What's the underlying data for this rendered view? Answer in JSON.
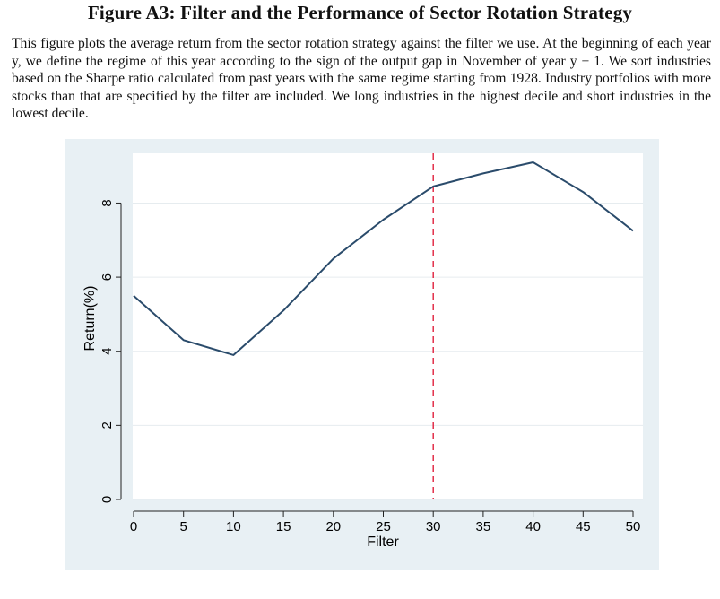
{
  "figure": {
    "title": "Figure A3: Filter and the Performance of Sector Rotation Strategy",
    "caption": "This figure plots the average return from the sector rotation strategy against the filter we use. At the beginning of each year y, we define the regime of this year according to the sign of the output gap in November of year y − 1. We sort industries based on the Sharpe ratio calculated from past years with the same regime starting from 1928. Industry portfolios with more stocks than that are specified by the filter are included. We long industries in the highest decile and short industries in the lowest decile."
  },
  "colors": {
    "outer_bg": "#e8f0f4",
    "plot_bg": "#ffffff",
    "line": "#2a4b6b",
    "ref_line": "#e0203c",
    "grid": "#e6ecef"
  },
  "chart_data": {
    "type": "line",
    "xlabel": "Filter",
    "ylabel": "Return(%)",
    "x": [
      0,
      5,
      10,
      15,
      20,
      25,
      30,
      35,
      40,
      45,
      50
    ],
    "y": [
      5.5,
      4.3,
      3.9,
      5.1,
      6.5,
      7.55,
      8.45,
      8.8,
      9.1,
      8.3,
      7.25
    ],
    "xticks": [
      0,
      5,
      10,
      15,
      20,
      25,
      30,
      35,
      40,
      45,
      50
    ],
    "yticks": [
      0,
      2,
      4,
      6,
      8
    ],
    "xlim": [
      0,
      50
    ],
    "ylim": [
      0,
      9.1
    ],
    "reference_line": {
      "x": 30,
      "style": "dashed"
    },
    "grid": "horizontal",
    "legend": "none"
  }
}
